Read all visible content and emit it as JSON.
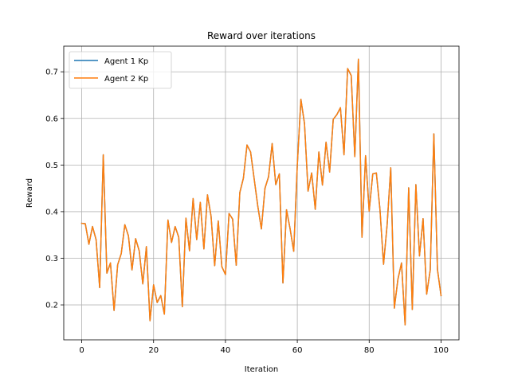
{
  "chart_data": {
    "type": "line",
    "title": "Reward over iterations",
    "xlabel": "Iteration",
    "ylabel": "Reward",
    "xlim": [
      -5,
      105
    ],
    "ylim": [
      0.125,
      0.755
    ],
    "xticks": [
      0,
      20,
      40,
      60,
      80,
      100
    ],
    "yticks": [
      0.2,
      0.3,
      0.4,
      0.5,
      0.6,
      0.7
    ],
    "grid": true,
    "legend_position": "upper-left",
    "series": [
      {
        "name": "Agent 1 Kp",
        "color": "#1f77b4",
        "values": [
          0.375,
          0.374,
          0.33,
          0.368,
          0.34,
          0.237,
          0.522,
          0.268,
          0.29,
          0.188,
          0.286,
          0.31,
          0.372,
          0.348,
          0.275,
          0.342,
          0.316,
          0.245,
          0.325,
          0.166,
          0.243,
          0.205,
          0.22,
          0.18,
          0.382,
          0.334,
          0.368,
          0.345,
          0.196,
          0.386,
          0.316,
          0.428,
          0.34,
          0.42,
          0.32,
          0.436,
          0.39,
          0.284,
          0.38,
          0.282,
          0.265,
          0.396,
          0.384,
          0.285,
          0.441,
          0.472,
          0.543,
          0.528,
          0.47,
          0.412,
          0.363,
          0.45,
          0.475,
          0.546,
          0.458,
          0.481,
          0.247,
          0.404,
          0.363,
          0.315,
          0.5,
          0.641,
          0.589,
          0.444,
          0.483,
          0.405,
          0.528,
          0.457,
          0.549,
          0.485,
          0.598,
          0.608,
          0.623,
          0.522,
          0.707,
          0.692,
          0.518,
          0.727,
          0.345,
          0.52,
          0.401,
          0.481,
          0.483,
          0.405,
          0.287,
          0.372,
          0.494,
          0.193,
          0.255,
          0.29,
          0.157,
          0.451,
          0.19,
          0.458,
          0.305,
          0.385,
          0.223,
          0.275,
          0.567,
          0.276,
          0.22
        ]
      },
      {
        "name": "Agent 2 Kp",
        "color": "#ff7f0e",
        "values": [
          0.375,
          0.374,
          0.33,
          0.368,
          0.34,
          0.237,
          0.522,
          0.268,
          0.29,
          0.188,
          0.286,
          0.31,
          0.372,
          0.348,
          0.275,
          0.342,
          0.316,
          0.245,
          0.325,
          0.166,
          0.243,
          0.205,
          0.22,
          0.18,
          0.382,
          0.334,
          0.368,
          0.345,
          0.196,
          0.386,
          0.316,
          0.428,
          0.34,
          0.42,
          0.32,
          0.436,
          0.39,
          0.284,
          0.38,
          0.282,
          0.265,
          0.396,
          0.384,
          0.285,
          0.441,
          0.472,
          0.543,
          0.528,
          0.47,
          0.412,
          0.363,
          0.45,
          0.475,
          0.546,
          0.458,
          0.481,
          0.247,
          0.404,
          0.363,
          0.315,
          0.5,
          0.641,
          0.589,
          0.444,
          0.483,
          0.405,
          0.528,
          0.457,
          0.549,
          0.485,
          0.598,
          0.608,
          0.623,
          0.522,
          0.707,
          0.692,
          0.518,
          0.727,
          0.345,
          0.52,
          0.401,
          0.481,
          0.483,
          0.405,
          0.287,
          0.372,
          0.494,
          0.193,
          0.255,
          0.29,
          0.157,
          0.451,
          0.19,
          0.458,
          0.305,
          0.385,
          0.223,
          0.275,
          0.567,
          0.276,
          0.22
        ]
      }
    ]
  }
}
